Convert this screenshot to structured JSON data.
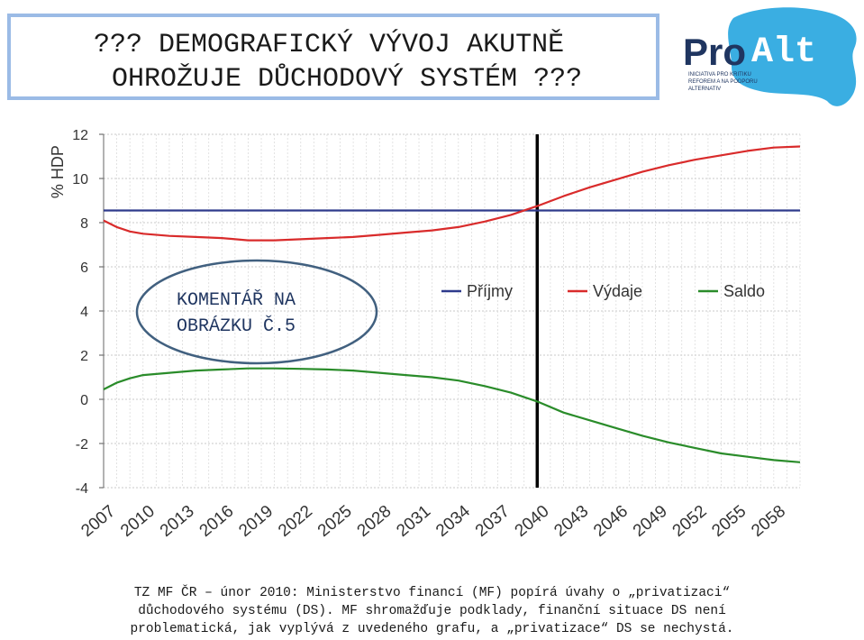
{
  "title": {
    "line1": "??? DEMOGRAFICKÝ VÝVOJ AKUTNĚ",
    "line2": "OHROŽUJE DŮCHODOVÝ SYSTÉM ???"
  },
  "logo": {
    "text_pro": "Pro",
    "text_alt": "Alt",
    "tagline": [
      "INICIATIVA PRO KRITIKU",
      "REFOREM A NA PODPORU",
      "ALTERNATIV"
    ],
    "colors": {
      "pro": "#1f3560",
      "alt": "#ffffff",
      "blob": "#3aaee2"
    }
  },
  "annotation": {
    "line1": "KOMENTÁŘ NA",
    "line2": "OBRÁZKU Č.5"
  },
  "footer": {
    "line1": "TZ MF ČR – únor 2010: Ministerstvo financí (MF) popírá úvahy o „privatizaci“",
    "line2": "důchodového systému (DS). MF shromažďuje podklady, finanční situace DS není",
    "line3": "problematická, jak vyplývá z uvedeného grafu, a „privatizace“ DS se nechystá."
  },
  "chart_data": {
    "type": "line",
    "ylabel": "% HDP",
    "xlabel": "",
    "ylim": [
      -4,
      12
    ],
    "yticks": [
      12,
      10,
      8,
      6,
      4,
      2,
      0,
      -2,
      -4
    ],
    "xlim": [
      2007,
      2060
    ],
    "xticks": [
      2007,
      2010,
      2013,
      2016,
      2019,
      2022,
      2025,
      2028,
      2031,
      2034,
      2037,
      2040,
      2043,
      2046,
      2049,
      2052,
      2055,
      2058
    ],
    "grid": true,
    "legend_position": "middle-right",
    "vertical_marker_x": 2040,
    "series": [
      {
        "name": "Příjmy",
        "color": "#2e3a8c",
        "x": [
          2007,
          2060
        ],
        "y": [
          8.55,
          8.55
        ]
      },
      {
        "name": "Výdaje",
        "color": "#d92b2b",
        "x": [
          2007,
          2008,
          2009,
          2010,
          2012,
          2014,
          2016,
          2018,
          2020,
          2022,
          2024,
          2026,
          2028,
          2030,
          2032,
          2034,
          2036,
          2038,
          2040,
          2042,
          2044,
          2046,
          2048,
          2050,
          2052,
          2054,
          2056,
          2058,
          2060
        ],
        "y": [
          8.1,
          7.8,
          7.6,
          7.5,
          7.4,
          7.35,
          7.3,
          7.2,
          7.2,
          7.25,
          7.3,
          7.35,
          7.45,
          7.55,
          7.65,
          7.8,
          8.05,
          8.35,
          8.75,
          9.2,
          9.6,
          9.95,
          10.3,
          10.6,
          10.85,
          11.05,
          11.25,
          11.4,
          11.45
        ]
      },
      {
        "name": "Saldo",
        "color": "#2a8c2a",
        "x": [
          2007,
          2008,
          2009,
          2010,
          2012,
          2014,
          2016,
          2018,
          2020,
          2022,
          2024,
          2026,
          2028,
          2030,
          2032,
          2034,
          2036,
          2038,
          2040,
          2042,
          2044,
          2046,
          2048,
          2050,
          2052,
          2054,
          2056,
          2058,
          2060
        ],
        "y": [
          0.45,
          0.75,
          0.95,
          1.1,
          1.2,
          1.3,
          1.35,
          1.4,
          1.4,
          1.38,
          1.35,
          1.3,
          1.2,
          1.1,
          1.0,
          0.85,
          0.6,
          0.3,
          -0.1,
          -0.6,
          -0.95,
          -1.3,
          -1.65,
          -1.95,
          -2.2,
          -2.45,
          -2.6,
          -2.75,
          -2.85
        ]
      }
    ]
  }
}
